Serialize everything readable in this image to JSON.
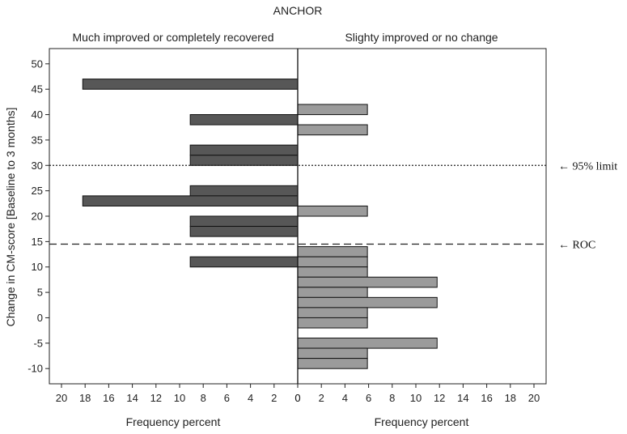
{
  "chart_data": {
    "type": "bar",
    "orientation": "horizontal",
    "layout": "back-to-back",
    "title": "ANCHOR",
    "ylabel": "Change in CM-score [Baseline to 3 months]",
    "ylim": [
      -13,
      53
    ],
    "yticks": [
      -10,
      -5,
      0,
      5,
      10,
      15,
      20,
      25,
      30,
      35,
      40,
      45,
      50
    ],
    "xlim": [
      0,
      21
    ],
    "xticks": [
      20,
      18,
      16,
      14,
      12,
      10,
      8,
      6,
      4,
      2,
      0
    ],
    "grid": false,
    "panels": [
      {
        "header": "Much improved or completely recovered",
        "xlabel": "Frequency percent",
        "side": "left",
        "color": "#575757",
        "bars": [
          {
            "y": 46,
            "value": 18.2
          },
          {
            "y": 39,
            "value": 9.1
          },
          {
            "y": 33,
            "value": 9.1
          },
          {
            "y": 31,
            "value": 9.1
          },
          {
            "y": 25,
            "value": 9.1
          },
          {
            "y": 23,
            "value": 18.2
          },
          {
            "y": 19,
            "value": 9.1
          },
          {
            "y": 17,
            "value": 9.1
          },
          {
            "y": 11,
            "value": 9.1
          }
        ]
      },
      {
        "header": "Slighty improved or no change",
        "xlabel": "Frequency percent",
        "side": "right",
        "color": "#9b9b9b",
        "bars": [
          {
            "y": 41,
            "value": 5.9
          },
          {
            "y": 37,
            "value": 5.9
          },
          {
            "y": 21,
            "value": 5.9
          },
          {
            "y": 13,
            "value": 5.9
          },
          {
            "y": 11,
            "value": 5.9
          },
          {
            "y": 9,
            "value": 5.9
          },
          {
            "y": 7,
            "value": 11.8
          },
          {
            "y": 5,
            "value": 5.9
          },
          {
            "y": 3,
            "value": 11.8
          },
          {
            "y": 1,
            "value": 5.9
          },
          {
            "y": -1,
            "value": 5.9
          },
          {
            "y": -5,
            "value": 11.8
          },
          {
            "y": -7,
            "value": 5.9
          },
          {
            "y": -9,
            "value": 5.9
          }
        ]
      }
    ],
    "reference_lines": [
      {
        "y": 30,
        "style": "dotted",
        "label": "← 95% limit"
      },
      {
        "y": 14.5,
        "style": "dashed",
        "label": "← ROC"
      }
    ]
  }
}
